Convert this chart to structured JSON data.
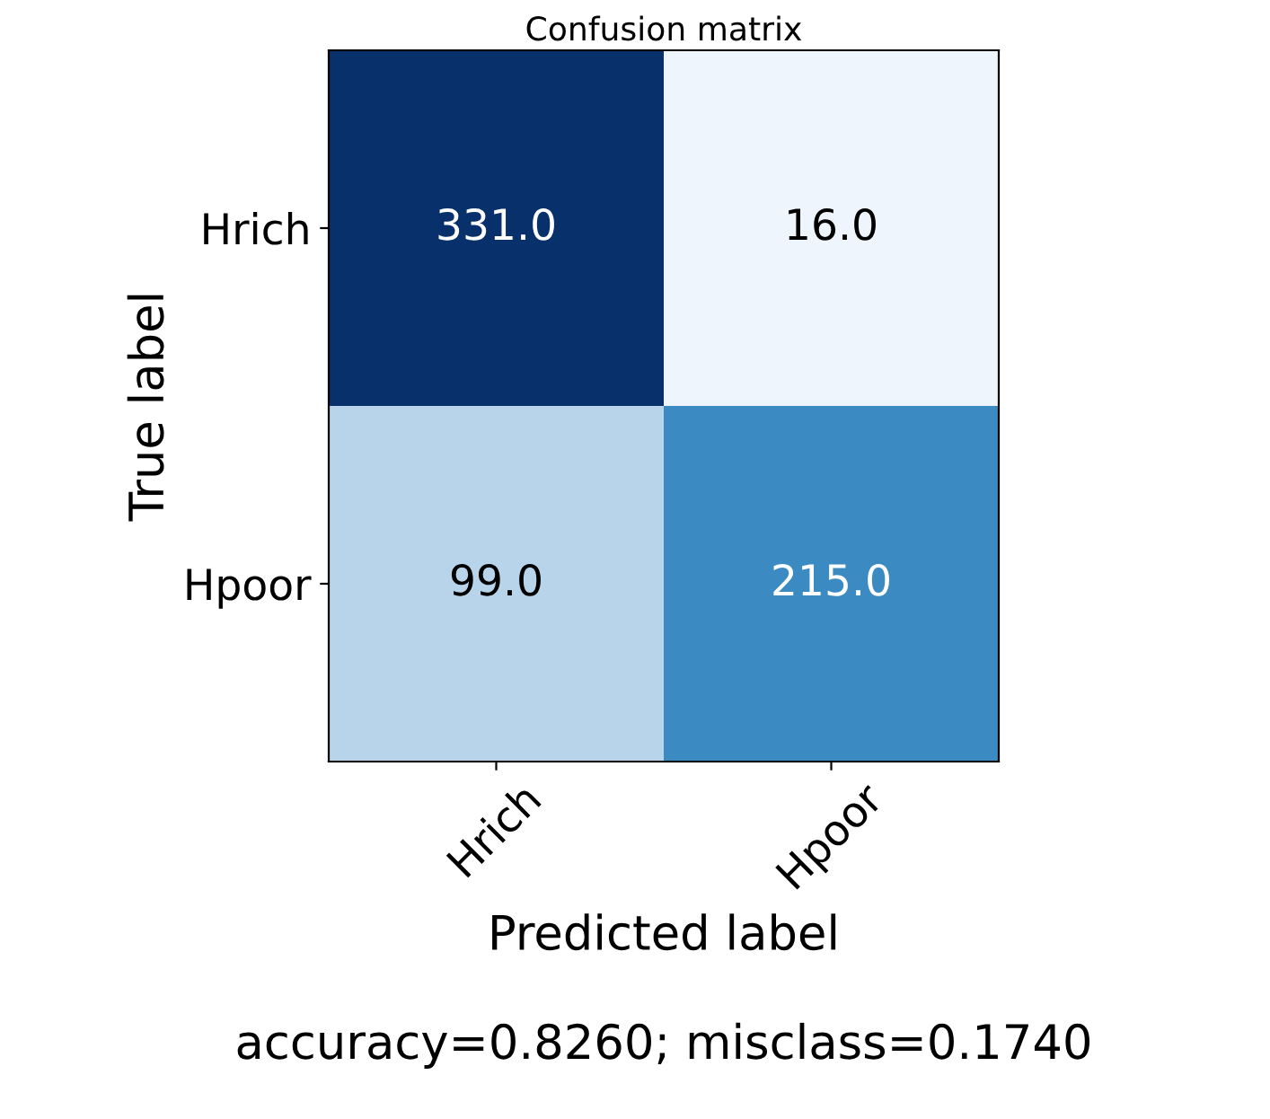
{
  "chart_data": {
    "type": "heatmap",
    "title": "Confusion matrix",
    "xlabel": "Predicted label",
    "ylabel": "True label",
    "categories": [
      "Hrich",
      "Hpoor"
    ],
    "y_categories": [
      "Hrich",
      "Hpoor"
    ],
    "cells": [
      [
        331,
        16
      ],
      [
        99,
        215
      ]
    ],
    "cell_labels": [
      [
        "331.0",
        "16.0"
      ],
      [
        "99.0",
        "215.0"
      ]
    ],
    "annotations": [
      "accuracy=0.8260; misclass=0.1740"
    ]
  }
}
